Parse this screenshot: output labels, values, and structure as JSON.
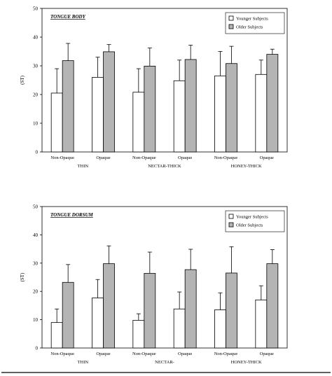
{
  "chart_data": [
    {
      "type": "bar",
      "title": "TONGUE BODY",
      "ylabel": "(ST)",
      "ylim": [
        0,
        50
      ],
      "yticks": [
        "0",
        "10",
        "20",
        "30",
        "40",
        "50"
      ],
      "categories": [
        "Non-Opaque",
        "Opaque",
        "Non-Opaque",
        "Opaque",
        "Non-Opaque",
        "Opaque"
      ],
      "groups": [
        "THIN",
        "NECTAR-THICK",
        "HONEY-THICK"
      ],
      "legend_position": "top-right",
      "colors": {
        "young": "#ffffff",
        "old": "#b4b4b4"
      },
      "series": [
        {
          "name": "Younger Subjects",
          "values": [
            20.5,
            26.0,
            20.8,
            24.8,
            26.5,
            27.0
          ],
          "error": [
            8.5,
            7.0,
            8.2,
            7.2,
            8.5,
            5.0
          ]
        },
        {
          "name": "Older Subjects",
          "values": [
            31.8,
            34.9,
            29.9,
            32.2,
            30.8,
            34.0
          ],
          "error": [
            6.0,
            2.5,
            6.3,
            5.0,
            6.0,
            1.8
          ]
        }
      ]
    },
    {
      "type": "bar",
      "title": "TONGUE DORSUM",
      "ylabel": "(ST)",
      "ylim": [
        0,
        50
      ],
      "yticks": [
        "0",
        "10",
        "20",
        "30",
        "40",
        "50"
      ],
      "categories": [
        "Non-Opaque",
        "Opaque",
        "Non-Opaque",
        "Opaque",
        "Non-Opaque",
        "Opaque"
      ],
      "groups": [
        "THIN",
        "NECTAR-",
        "HONEY-THICK"
      ],
      "legend_position": "top-right",
      "colors": {
        "young": "#ffffff",
        "old": "#b4b4b4"
      },
      "series": [
        {
          "name": "Younger Subjects",
          "values": [
            9.0,
            17.7,
            9.8,
            13.8,
            13.5,
            17.0
          ],
          "error": [
            4.8,
            6.5,
            2.3,
            6.0,
            6.0,
            5.0
          ]
        },
        {
          "name": "Older Subjects",
          "values": [
            23.2,
            29.8,
            26.4,
            27.7,
            26.5,
            29.8
          ],
          "error": [
            6.3,
            6.3,
            7.5,
            7.2,
            9.3,
            5.0
          ]
        }
      ]
    }
  ]
}
